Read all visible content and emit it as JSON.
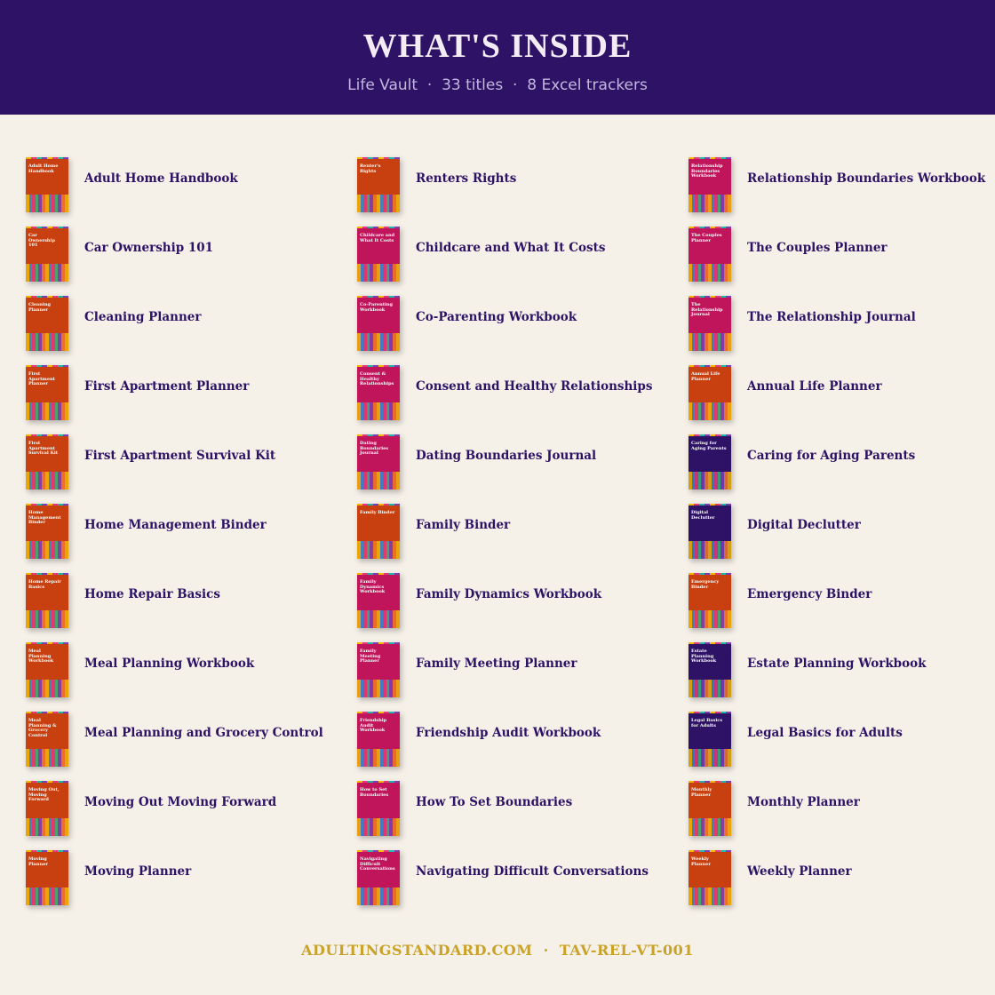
{
  "header": {
    "title": "WHAT'S INSIDE",
    "subtitle": "Life Vault  ·  33 titles  ·  8 Excel trackers"
  },
  "items": [
    {
      "title": "Adult Home Handbook",
      "cover_title": "Adult Home Handbook",
      "cover_color": "#c8400f"
    },
    {
      "title": "Car Ownership 101",
      "cover_title": "Car Ownership 101",
      "cover_color": "#c8400f"
    },
    {
      "title": "Cleaning Planner",
      "cover_title": "Cleaning Planner",
      "cover_color": "#c8400f"
    },
    {
      "title": "First Apartment Planner",
      "cover_title": "First Apartment Planner",
      "cover_color": "#c8400f"
    },
    {
      "title": "First Apartment Survival Kit",
      "cover_title": "First Apartment Survival Kit",
      "cover_color": "#c8400f"
    },
    {
      "title": "Home Management Binder",
      "cover_title": "Home Management Binder",
      "cover_color": "#c8400f"
    },
    {
      "title": "Home Repair Basics",
      "cover_title": "Home Repair Basics",
      "cover_color": "#c8400f"
    },
    {
      "title": "Meal Planning Workbook",
      "cover_title": "Meal Planning Workbook",
      "cover_color": "#c8400f"
    },
    {
      "title": "Meal Planning and Grocery Control",
      "cover_title": "Meal Planning & Grocery Control",
      "cover_color": "#c8400f"
    },
    {
      "title": "Moving Out Moving Forward",
      "cover_title": "Moving Out, Moving Forward",
      "cover_color": "#c8400f"
    },
    {
      "title": "Moving Planner",
      "cover_title": "Moving Planner",
      "cover_color": "#c8400f"
    },
    {
      "title": "Renters Rights",
      "cover_title": "Renter's Rights",
      "cover_color": "#c8400f"
    },
    {
      "title": "Childcare and What It Costs",
      "cover_title": "Childcare and What It Costs",
      "cover_color": "#c0155a"
    },
    {
      "title": "Co-Parenting Workbook",
      "cover_title": "Co-Parenting Workbook",
      "cover_color": "#c0155a"
    },
    {
      "title": "Consent and Healthy Relationships",
      "cover_title": "Consent & Healthy Relationships",
      "cover_color": "#c0155a"
    },
    {
      "title": "Dating Boundaries Journal",
      "cover_title": "Dating Boundaries Journal",
      "cover_color": "#c0155a"
    },
    {
      "title": "Family Binder",
      "cover_title": "Family Binder",
      "cover_color": "#c8400f"
    },
    {
      "title": "Family Dynamics Workbook",
      "cover_title": "Family Dynamics Workbook",
      "cover_color": "#c0155a"
    },
    {
      "title": "Family Meeting Planner",
      "cover_title": "Family Meeting Planner",
      "cover_color": "#c0155a"
    },
    {
      "title": "Friendship Audit Workbook",
      "cover_title": "Friendship Audit Workbook",
      "cover_color": "#c0155a"
    },
    {
      "title": "How To Set Boundaries",
      "cover_title": "How to Set Boundaries",
      "cover_color": "#c0155a"
    },
    {
      "title": "Navigating Difficult Conversations",
      "cover_title": "Navigating Difficult Conversations",
      "cover_color": "#c0155a"
    },
    {
      "title": "Relationship Boundaries Workbook",
      "cover_title": "Relationship Boundaries Workbook",
      "cover_color": "#c0155a"
    },
    {
      "title": "The Couples Planner",
      "cover_title": "The Couples Planner",
      "cover_color": "#c0155a"
    },
    {
      "title": "The Relationship Journal",
      "cover_title": "The Relationship Journal",
      "cover_color": "#c0155a"
    },
    {
      "title": "Annual Life Planner",
      "cover_title": "Annual Life Planner",
      "cover_color": "#c8400f"
    },
    {
      "title": "Caring for Aging Parents",
      "cover_title": "Caring for Aging Parents",
      "cover_color": "#2d1266"
    },
    {
      "title": "Digital Declutter",
      "cover_title": "Digital Declutter",
      "cover_color": "#2d1266"
    },
    {
      "title": "Emergency Binder",
      "cover_title": "Emergency Binder",
      "cover_color": "#c8400f"
    },
    {
      "title": "Estate Planning Workbook",
      "cover_title": "Estate Planning Workbook",
      "cover_color": "#2d1266"
    },
    {
      "title": "Legal Basics for Adults",
      "cover_title": "Legal Basics for Adults",
      "cover_color": "#2d1266"
    },
    {
      "title": "Monthly Planner",
      "cover_title": "Monthly Planner",
      "cover_color": "#c8400f"
    },
    {
      "title": "Weekly Planner",
      "cover_title": "Weekly Planner",
      "cover_color": "#c8400f"
    }
  ],
  "footer": "ADULTINGSTANDARD.COM  ·  TAV-REL-VT-001"
}
